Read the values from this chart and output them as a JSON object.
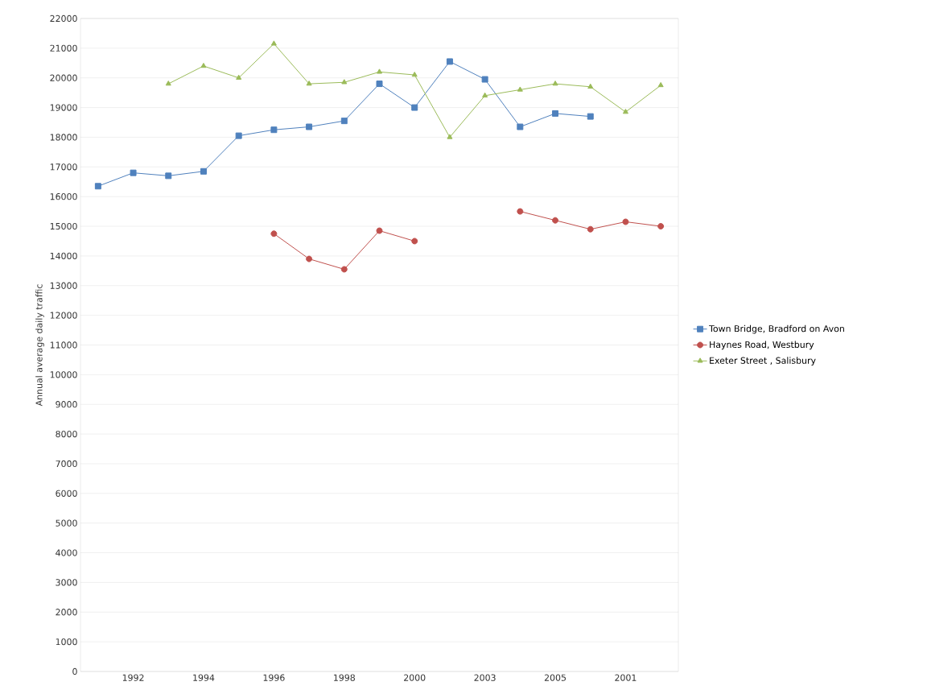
{
  "chart_data": {
    "type": "line",
    "ylabel": "Annual average daily traffic",
    "categories": [
      null,
      "1992",
      null,
      "1994",
      null,
      "1996",
      null,
      "1998",
      null,
      "2000",
      null,
      "2003",
      null,
      "2005",
      null,
      "2001",
      null
    ],
    "series": [
      {
        "name": "Town Bridge, Bradford on Avon",
        "color": "#4f81bd",
        "marker": "square",
        "values": [
          16350,
          16800,
          16700,
          16850,
          18050,
          18250,
          18350,
          18550,
          19800,
          19000,
          20550,
          19950,
          18350,
          18800,
          18700,
          null,
          null
        ]
      },
      {
        "name": "Haynes Road, Westbury",
        "color": "#c0504d",
        "marker": "circle",
        "values": [
          null,
          null,
          null,
          null,
          null,
          14750,
          13900,
          13550,
          14850,
          14500,
          null,
          null,
          15500,
          15200,
          14900,
          15150,
          15000
        ]
      },
      {
        "name": "Exeter Street , Salisbury",
        "color": "#9bbb59",
        "marker": "triangle",
        "values": [
          null,
          null,
          19800,
          20400,
          20000,
          21150,
          19800,
          19850,
          20200,
          20100,
          18000,
          19400,
          19600,
          19800,
          19700,
          18850,
          19750
        ]
      }
    ],
    "ylim": [
      0,
      22000
    ],
    "yticks": [
      0,
      1000,
      2000,
      3000,
      4000,
      5000,
      6000,
      7000,
      8000,
      9000,
      10000,
      11000,
      12000,
      13000,
      14000,
      15000,
      16000,
      17000,
      18000,
      19000,
      20000,
      21000,
      22000
    ],
    "grid": "y",
    "legend": "right"
  }
}
